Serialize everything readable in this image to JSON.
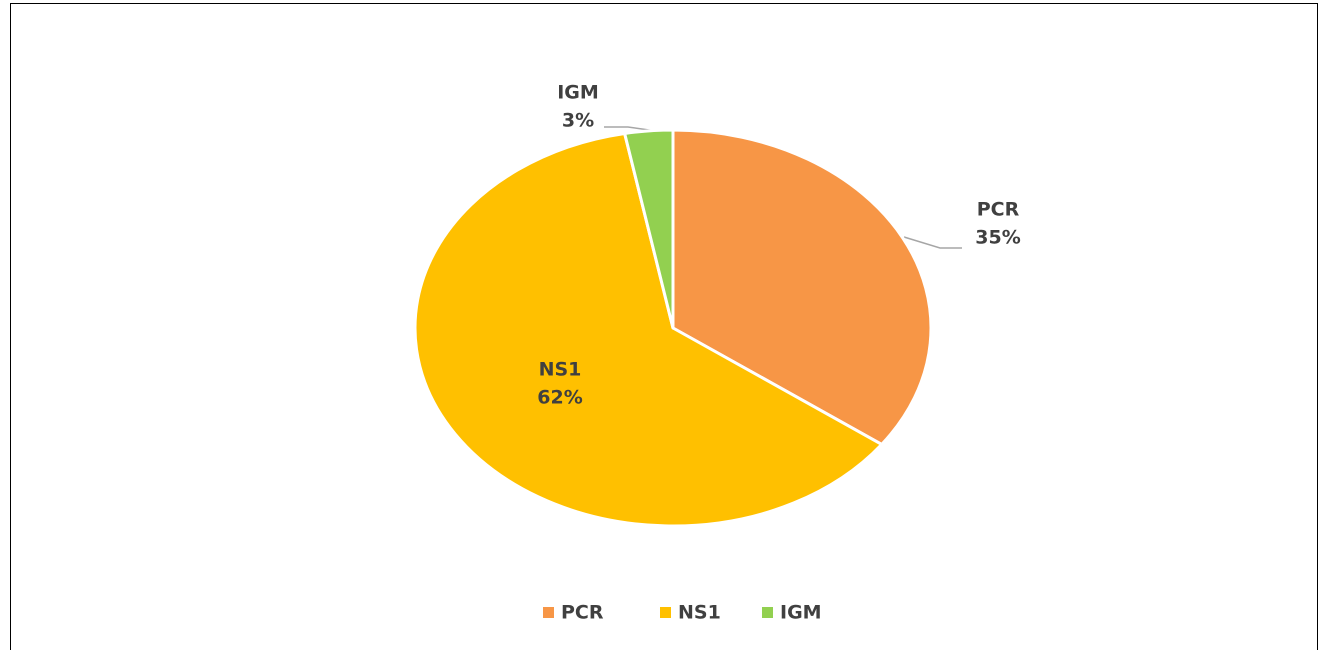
{
  "chart_data": {
    "type": "pie",
    "categories": [
      "PCR",
      "NS1",
      "IGM"
    ],
    "values": [
      35,
      62,
      3
    ],
    "value_labels": [
      "35%",
      "62%",
      "3%"
    ],
    "colors": [
      "#f79646",
      "#ffc000",
      "#92d050"
    ],
    "legend": "bottom"
  }
}
